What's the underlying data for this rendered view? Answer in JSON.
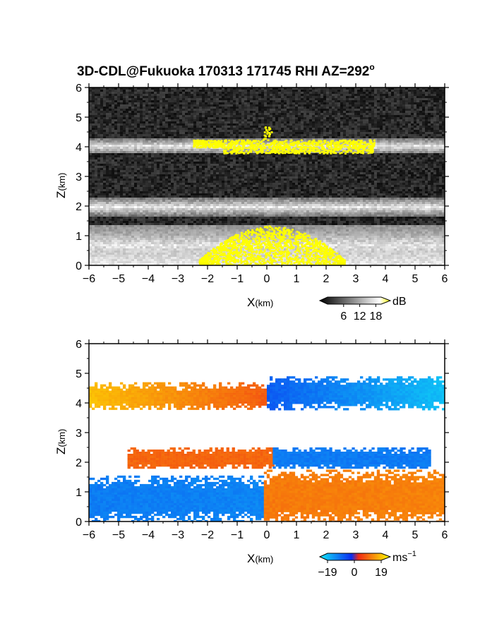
{
  "title_main": "3D-CDL@Fukuoka 170313 171745 RHI AZ=292",
  "title_superscript": "o",
  "colors": {
    "echo_yellow": "#ffff00",
    "vel_negative": "#0a2cf0",
    "vel_positive": "#f02a14",
    "vel_far_negative": "#10d8f0",
    "vel_far_positive": "#f8b020"
  },
  "chart_data": [
    {
      "type": "heatmap",
      "variable": "backscatter intensity",
      "xlabel_main": "X",
      "xlabel_unit": "(km)",
      "ylabel_main": "Z",
      "ylabel_unit": "(km)",
      "xlim": [
        -6,
        6
      ],
      "ylim": [
        0,
        6
      ],
      "x_ticks": [
        "-6",
        "-5",
        "-4",
        "-3",
        "-2",
        "-1",
        "0",
        "1",
        "2",
        "3",
        "4",
        "5",
        "6"
      ],
      "y_ticks": [
        "0",
        "1",
        "2",
        "3",
        "4",
        "5",
        "6"
      ],
      "colorbar": {
        "unit": "dB",
        "tick_labels": [
          "6",
          "12",
          "18"
        ],
        "range": [
          0,
          20
        ],
        "colors": [
          "#000000",
          "#ffffff",
          "#ffff00"
        ]
      },
      "layers_km": [
        {
          "feature": "upper layer",
          "z_base": 3.8,
          "z_top": 4.3,
          "x_from": -6,
          "x_to": 6
        },
        {
          "feature": "middle bands",
          "z_base": 1.7,
          "z_top": 2.3,
          "x_from": -6,
          "x_to": 6
        },
        {
          "feature": "lower layer",
          "z_base": 0.0,
          "z_top": 1.4,
          "x_from": -6,
          "x_to": 6
        }
      ],
      "high_intensity_regions_km": [
        {
          "feature": "upper layer",
          "x_from": -2.5,
          "x_to": 3.6,
          "z_from": 3.8,
          "z_to": 4.7
        },
        {
          "feature": "lower layer",
          "x_from": -2.3,
          "x_to": 2.6,
          "z_from": 0.0,
          "z_to": 1.35
        }
      ]
    },
    {
      "type": "heatmap",
      "variable": "radial velocity",
      "xlabel_main": "X",
      "xlabel_unit": "(km)",
      "ylabel_main": "Z",
      "ylabel_unit": "(km)",
      "xlim": [
        -6,
        6
      ],
      "ylim": [
        0,
        6
      ],
      "x_ticks": [
        "-6",
        "-5",
        "-4",
        "-3",
        "-2",
        "-1",
        "0",
        "1",
        "2",
        "3",
        "4",
        "5",
        "6"
      ],
      "y_ticks": [
        "0",
        "1",
        "2",
        "3",
        "4",
        "5",
        "6"
      ],
      "colorbar": {
        "unit": "ms",
        "unit_exponent": "−1",
        "tick_labels": [
          "−19",
          "0",
          "19"
        ],
        "range": [
          -19,
          19
        ],
        "colors": [
          "#10e8f8",
          "#0a2cf0",
          "#f02a14",
          "#ffff00"
        ]
      },
      "velocity_regions": [
        {
          "feature": "upper layer west",
          "x_from": -6.0,
          "x_to": 0.0,
          "z_from": 3.8,
          "z_to": 4.7,
          "velocity_ms": [
            15,
            5
          ]
        },
        {
          "feature": "upper layer east",
          "x_from": 0.0,
          "x_to": 6.0,
          "z_from": 3.8,
          "z_to": 4.9,
          "velocity_ms": [
            -5,
            -15
          ]
        },
        {
          "feature": "middle band west",
          "x_from": -4.7,
          "x_to": 0.2,
          "z_from": 1.8,
          "z_to": 2.5,
          "velocity_ms": [
            6,
            6
          ]
        },
        {
          "feature": "middle band east",
          "x_from": 0.2,
          "x_to": 5.5,
          "z_from": 1.8,
          "z_to": 2.5,
          "velocity_ms": [
            -8,
            -8
          ]
        },
        {
          "feature": "lower layer west",
          "x_from": -6.0,
          "x_to": -0.1,
          "z_from": 0.0,
          "z_to": 1.55,
          "velocity_ms": [
            -8,
            -9
          ]
        },
        {
          "feature": "lower layer east",
          "x_from": -0.1,
          "x_to": 6.0,
          "z_from": 0.0,
          "z_to": 1.75,
          "velocity_ms": [
            8,
            9
          ]
        }
      ]
    }
  ]
}
